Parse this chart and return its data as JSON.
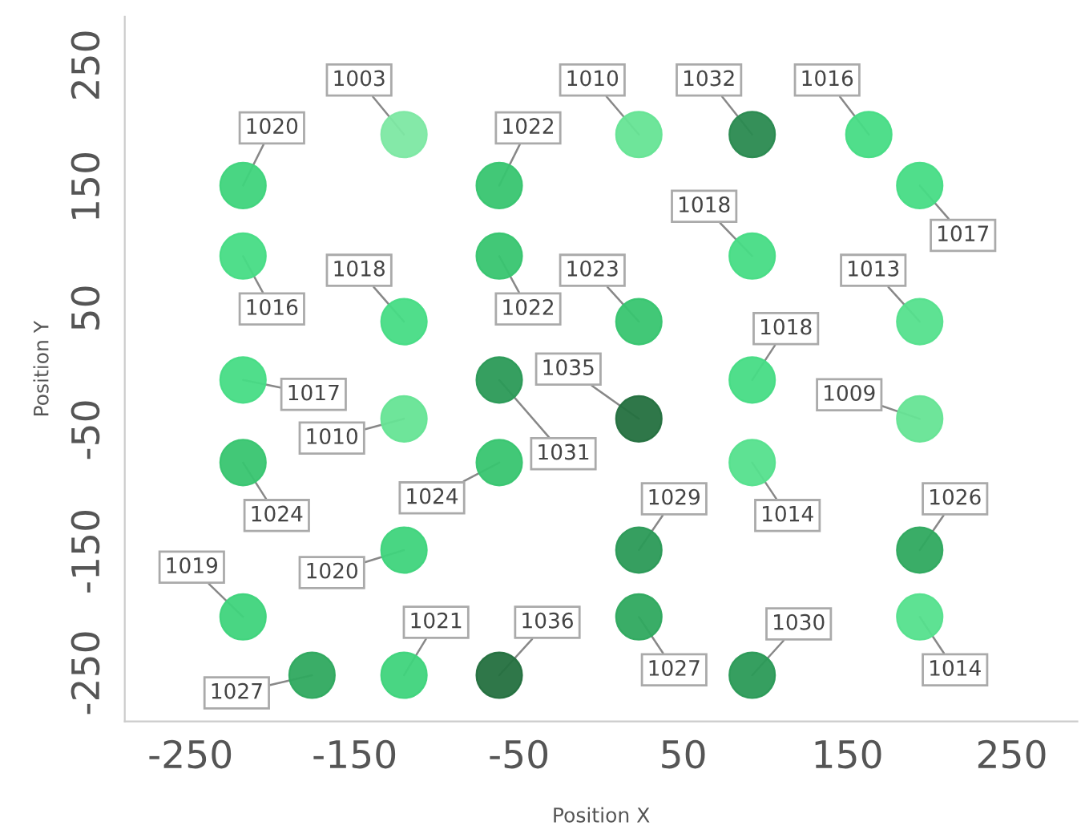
{
  "chart_data": {
    "type": "scatter",
    "xlabel": "Position X",
    "ylabel": "Position Y",
    "x": [
      -218,
      -120,
      -62,
      23,
      92,
      163,
      194,
      -218,
      -120,
      -62,
      23,
      92,
      194,
      -218,
      -120,
      -62,
      23,
      92,
      194,
      -218,
      -62,
      92,
      -120,
      23,
      194,
      -218,
      23,
      92,
      194,
      -176,
      -120,
      -62
    ],
    "values": [
      151,
      193,
      151,
      193,
      193,
      193,
      151,
      93,
      39,
      93,
      39,
      93,
      39,
      -9,
      -41,
      -9,
      -41,
      -9,
      -41,
      -77,
      -77,
      -77,
      -149,
      -149,
      -149,
      -204,
      -204,
      -252,
      -204,
      -252,
      -252,
      -252
    ],
    "colors": [
      "#3fd47c",
      "#7de8a3",
      "#38c570",
      "#66e495",
      "#2a8a50",
      "#47dc85",
      "#47dc85",
      "#47dc85",
      "#47dc85",
      "#38c570",
      "#38c570",
      "#47dc85",
      "#55e08d",
      "#47dc85",
      "#66e495",
      "#2b9a57",
      "#24703f",
      "#47dc85",
      "#66e495",
      "#38c570",
      "#38c570",
      "#55e08d",
      "#3fd47c",
      "#2b9a57",
      "#2fa95f",
      "#3fd47c",
      "#2fa95f",
      "#2b9a57",
      "#55e08d",
      "#2fa95f",
      "#3fd47c",
      "#24703f"
    ],
    "annotations": [
      {
        "text": "1020",
        "x": -218,
        "y": 151
      },
      {
        "text": "1003",
        "x": -120,
        "y": 193
      },
      {
        "text": "1022",
        "x": -62,
        "y": 151
      },
      {
        "text": "1010",
        "x": 23,
        "y": 193
      },
      {
        "text": "1032",
        "x": 92,
        "y": 193
      },
      {
        "text": "1016",
        "x": 163,
        "y": 193
      },
      {
        "text": "1017",
        "x": 194,
        "y": 151
      },
      {
        "text": "1016",
        "x": -218,
        "y": 93
      },
      {
        "text": "1018",
        "x": -120,
        "y": 39
      },
      {
        "text": "1022",
        "x": -62,
        "y": 93
      },
      {
        "text": "1023",
        "x": 23,
        "y": 39
      },
      {
        "text": "1018",
        "x": 92,
        "y": 93
      },
      {
        "text": "1013",
        "x": 194,
        "y": 39
      },
      {
        "text": "1017",
        "x": -218,
        "y": -9
      },
      {
        "text": "1010",
        "x": -120,
        "y": -41
      },
      {
        "text": "1031",
        "x": -62,
        "y": -9
      },
      {
        "text": "1035",
        "x": 23,
        "y": -41
      },
      {
        "text": "1018",
        "x": 92,
        "y": -9
      },
      {
        "text": "1009",
        "x": 194,
        "y": -41
      },
      {
        "text": "1024",
        "x": -218,
        "y": -77
      },
      {
        "text": "1024",
        "x": -62,
        "y": -77
      },
      {
        "text": "1014",
        "x": 92,
        "y": -77
      },
      {
        "text": "1020",
        "x": -120,
        "y": -149
      },
      {
        "text": "1029",
        "x": 23,
        "y": -149
      },
      {
        "text": "1026",
        "x": 194,
        "y": -149
      },
      {
        "text": "1019",
        "x": -218,
        "y": -204
      },
      {
        "text": "1027",
        "x": 23,
        "y": -204
      },
      {
        "text": "1030",
        "x": 92,
        "y": -252
      },
      {
        "text": "1014",
        "x": 194,
        "y": -204
      },
      {
        "text": "1027",
        "x": -176,
        "y": -252
      },
      {
        "text": "1021",
        "x": -120,
        "y": -252
      },
      {
        "text": "1036",
        "x": -62,
        "y": -252
      }
    ],
    "xlim": [
      -290,
      290
    ],
    "ylim": [
      -290,
      290
    ],
    "xticks": [
      -250,
      -150,
      -50,
      50,
      150,
      250
    ],
    "yticks": [
      -250,
      -150,
      -50,
      50,
      150,
      250
    ],
    "grid": false,
    "marker": "circle"
  }
}
